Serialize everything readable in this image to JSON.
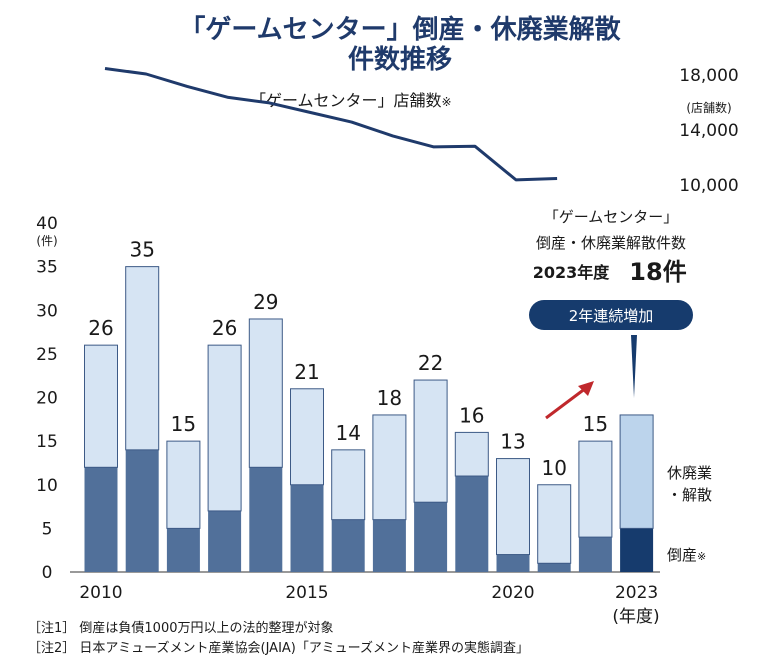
{
  "title_line1": "「ゲームセンター」倒産・休廃業解散",
  "title_line2": "件数推移",
  "store_chart": {
    "label": "「ゲームセンター」店舗数",
    "label_mark": "※",
    "unit": "(店舗数)",
    "right_ticks": [
      "18,000",
      "14,000",
      "10,000"
    ]
  },
  "bar_chart": {
    "y_max_label": "40",
    "y_unit": "(件)",
    "x_unit": "(年度)",
    "legend_upper": [
      "休廃業",
      "・解散"
    ],
    "legend_lower": "倒産",
    "legend_lower_mark": "※"
  },
  "callout": {
    "line1": "「ゲームセンター」",
    "line2": "倒産・休廃業解散件数",
    "year": "2023年度",
    "count": "18件",
    "badge": "2年連続増加"
  },
  "notes": [
    "［注1］ 倒産は負債1000万円以上の法的整理が対象",
    "［注2］ 日本アミューズメント産業協会(JAIA)「アミューズメント産業界の実態調査」"
  ],
  "colors": {
    "bar_light": "#d6e4f3",
    "bar_dark": "#51709a",
    "bar_dark_2023": "#163b6d",
    "bar_light_2023": "#bcd4ec",
    "line": "#1f3a6b",
    "arrow": "#c0282c",
    "badge": "#163b6d"
  },
  "chart_data": [
    {
      "type": "bar",
      "stacked": true,
      "categories": [
        "2010",
        "2011",
        "2012",
        "2013",
        "2014",
        "2015",
        "2016",
        "2017",
        "2018",
        "2019",
        "2020",
        "2021",
        "2022",
        "2023"
      ],
      "x_tick_labels": [
        "2010",
        "2015",
        "2020",
        "2023"
      ],
      "series": [
        {
          "name": "倒産",
          "values": [
            12,
            14,
            5,
            7,
            12,
            10,
            6,
            6,
            8,
            11,
            2,
            1,
            4,
            5
          ]
        },
        {
          "name": "休廃業・解散",
          "values": [
            14,
            21,
            10,
            19,
            17,
            11,
            8,
            12,
            14,
            5,
            11,
            9,
            11,
            13
          ]
        }
      ],
      "totals": [
        26,
        35,
        15,
        26,
        29,
        21,
        14,
        18,
        22,
        16,
        13,
        10,
        15,
        18
      ],
      "ylim": [
        0,
        40
      ],
      "y_ticks": [
        0,
        5,
        10,
        15,
        20,
        25,
        30,
        35,
        40
      ],
      "ylabel": "(件)",
      "xlabel": "(年度)",
      "grid": false
    },
    {
      "type": "line",
      "x": [
        "2010",
        "2011",
        "2012",
        "2013",
        "2014",
        "2015",
        "2016",
        "2017",
        "2018",
        "2019",
        "2020",
        "2021"
      ],
      "values": [
        18400,
        18000,
        17100,
        16300,
        15900,
        15200,
        14500,
        13500,
        12700,
        12750,
        10300,
        10400
      ],
      "ylim": [
        10000,
        18000
      ],
      "y_ticks": [
        18000,
        14000,
        10000
      ],
      "legend": "「ゲームセンター」店舗数※"
    }
  ]
}
